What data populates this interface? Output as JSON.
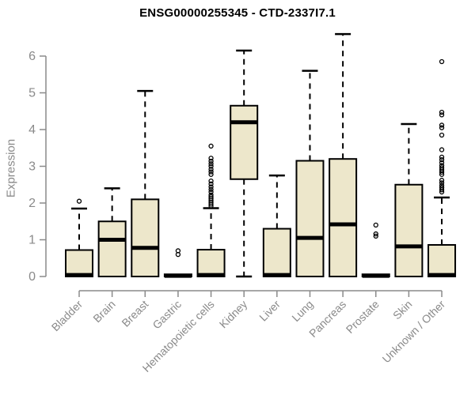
{
  "title": "ENSG00000255345 - CTD-2337I7.1",
  "colors": {
    "box_fill": "#EDE7CB",
    "box_border": "#000000",
    "median": "#000000",
    "whisker": "#000000",
    "outlier": "#000000",
    "axis": "#8a8a8a",
    "tick_label": "#8a8a8a",
    "title": "#000000",
    "background": "#ffffff"
  },
  "chart_data": {
    "type": "boxplot",
    "title": "ENSG00000255345 - CTD-2337I7.1",
    "xlabel": "",
    "ylabel": "Expression",
    "ylim": [
      0,
      6.8
    ],
    "yticks": [
      0,
      1,
      2,
      3,
      4,
      5,
      6
    ],
    "grid": false,
    "legend": "none",
    "categories": [
      "Bladder",
      "Brain",
      "Breast",
      "Gastric",
      "Hematopoietic cells",
      "Kidney",
      "Liver",
      "Lung",
      "Pancreas",
      "Prostate",
      "Skin",
      "Unknown / Other"
    ],
    "series": [
      {
        "name": "Bladder",
        "whisker_low": 0,
        "q1": 0,
        "median": 0.04,
        "q3": 0.72,
        "whisker_high": 1.85,
        "outliers": [
          2.05
        ]
      },
      {
        "name": "Brain",
        "whisker_low": 0,
        "q1": 0,
        "median": 1.0,
        "q3": 1.5,
        "whisker_high": 2.4,
        "outliers": []
      },
      {
        "name": "Breast",
        "whisker_low": 0,
        "q1": 0,
        "median": 0.78,
        "q3": 2.1,
        "whisker_high": 5.05,
        "outliers": []
      },
      {
        "name": "Gastric",
        "whisker_low": 0,
        "q1": 0,
        "median": 0.02,
        "q3": 0.06,
        "whisker_high": 0.08,
        "outliers": [
          0.6,
          0.7
        ]
      },
      {
        "name": "Hematopoietic cells",
        "whisker_low": 0,
        "q1": 0,
        "median": 0.04,
        "q3": 0.73,
        "whisker_high": 1.86,
        "outliers": [
          1.92,
          1.97,
          2.02,
          2.07,
          2.12,
          2.17,
          2.22,
          2.3,
          2.37,
          2.44,
          2.52,
          2.6,
          2.78,
          2.85,
          2.92,
          3.0,
          3.07,
          3.14,
          3.22,
          3.55
        ]
      },
      {
        "name": "Kidney",
        "whisker_low": 0,
        "q1": 2.65,
        "median": 4.2,
        "q3": 4.65,
        "whisker_high": 6.15,
        "outliers": []
      },
      {
        "name": "Liver",
        "whisker_low": 0,
        "q1": 0,
        "median": 0.04,
        "q3": 1.3,
        "whisker_high": 2.75,
        "outliers": []
      },
      {
        "name": "Lung",
        "whisker_low": 0,
        "q1": 0,
        "median": 1.05,
        "q3": 3.15,
        "whisker_high": 5.6,
        "outliers": []
      },
      {
        "name": "Pancreas",
        "whisker_low": 0,
        "q1": 0,
        "median": 1.42,
        "q3": 3.2,
        "whisker_high": 6.6,
        "outliers": []
      },
      {
        "name": "Prostate",
        "whisker_low": 0,
        "q1": 0,
        "median": 0.02,
        "q3": 0.06,
        "whisker_high": 0.08,
        "outliers": [
          1.1,
          1.16,
          1.4
        ]
      },
      {
        "name": "Skin",
        "whisker_low": 0,
        "q1": 0,
        "median": 0.82,
        "q3": 2.5,
        "whisker_high": 4.15,
        "outliers": []
      },
      {
        "name": "Unknown / Other",
        "whisker_low": 0,
        "q1": 0,
        "median": 0.04,
        "q3": 0.86,
        "whisker_high": 2.15,
        "outliers": [
          2.3,
          2.36,
          2.42,
          2.48,
          2.55,
          2.62,
          2.78,
          2.84,
          2.9,
          2.96,
          3.02,
          3.1,
          3.18,
          3.25,
          3.45,
          3.85,
          4.05,
          4.12,
          4.4,
          4.47,
          5.85
        ]
      }
    ]
  }
}
